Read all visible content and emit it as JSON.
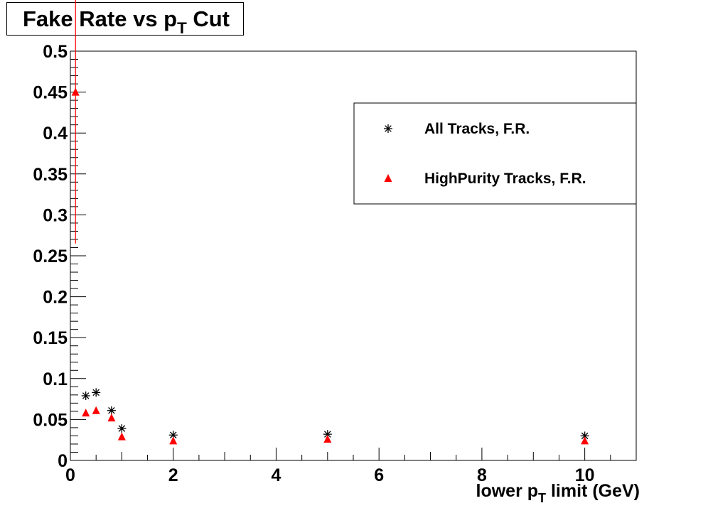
{
  "chart_data": {
    "type": "scatter",
    "title": {
      "prefix": "Fake Rate vs ",
      "main": "p",
      "sub": "T",
      "suffix": " Cut"
    },
    "xlabel": {
      "prefix": "lower ",
      "main": "p",
      "sub": "T",
      "suffix": " limit (GeV)"
    },
    "ylabel": "",
    "xlim": [
      0,
      11
    ],
    "ylim": [
      0,
      0.5
    ],
    "xticks": [
      0,
      2,
      4,
      6,
      8,
      10
    ],
    "yticks": [
      0,
      0.05,
      0.1,
      0.15,
      0.2,
      0.25,
      0.3,
      0.35,
      0.4,
      0.45,
      0.5
    ],
    "legend_position": "top-right",
    "series": [
      {
        "name": "All Tracks, F.R.",
        "marker": "asterisk",
        "color": "#000000",
        "x": [
          0.3,
          0.5,
          0.8,
          1.0,
          2.0,
          5.0,
          10.0
        ],
        "y": [
          0.079,
          0.083,
          0.061,
          0.039,
          0.031,
          0.032,
          0.03
        ]
      },
      {
        "name": "HighPurity Tracks, F.R.",
        "marker": "triangle",
        "color": "#ff0000",
        "x": [
          0.1,
          0.3,
          0.5,
          0.8,
          1.0,
          2.0,
          5.0,
          10.0
        ],
        "y": [
          0.45,
          0.058,
          0.061,
          0.052,
          0.029,
          0.024,
          0.026,
          0.024
        ],
        "errors": [
          0.185,
          0,
          0,
          0,
          0,
          0,
          0,
          0
        ]
      }
    ]
  }
}
